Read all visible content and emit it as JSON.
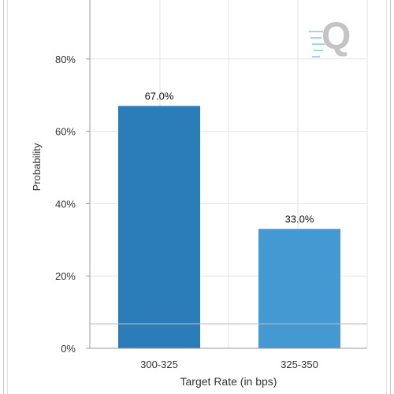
{
  "chart_data": {
    "type": "bar",
    "title": "",
    "xlabel": "Target Rate (in bps)",
    "ylabel": "Probability",
    "categories": [
      "300-325",
      "325-350"
    ],
    "values": [
      67.0,
      33.0
    ],
    "data_labels": [
      "67.0%",
      "33.0%"
    ],
    "y_ticks": [
      0,
      20,
      40,
      60,
      80
    ],
    "y_tick_labels": [
      "0%",
      "20%",
      "40%",
      "60%",
      "80%"
    ],
    "ylim": [
      0,
      95
    ],
    "grid": true,
    "colors": [
      "#2a7db9",
      "#4499d3"
    ],
    "grid_color": "#e3e3e3",
    "axis_color": "#9a9a9a"
  },
  "watermark": {
    "icon": "q-logo-icon",
    "text": "Q",
    "color": "#c4c4c4",
    "accent": "#9fd4ea"
  }
}
